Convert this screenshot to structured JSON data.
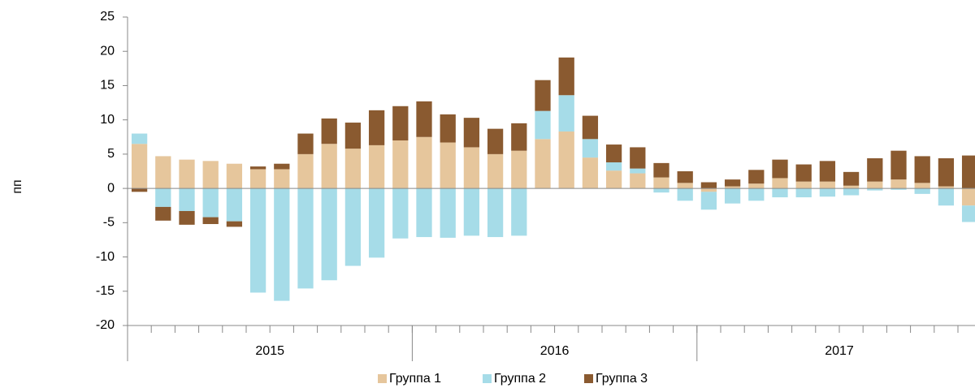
{
  "chart_data": {
    "type": "stacked-bar",
    "y_label": "пп",
    "categories": [
      null,
      null,
      null,
      null,
      null,
      null,
      null,
      null,
      null,
      null,
      null,
      null,
      null,
      null,
      null,
      null,
      null,
      null,
      null,
      null,
      null,
      null,
      null,
      null,
      null,
      null,
      null,
      null,
      null,
      null,
      null,
      null,
      null,
      null,
      null,
      null
    ],
    "groups": [
      "2015",
      "2016",
      "2017"
    ],
    "series": [
      {
        "name": "Группа 1",
        "color": "#e6c69c",
        "values": [
          6.5,
          4.7,
          4.2,
          4.0,
          3.6,
          2.8,
          2.8,
          5.0,
          6.5,
          5.8,
          6.3,
          7.0,
          7.5,
          6.7,
          6.0,
          5.0,
          5.5,
          7.2,
          8.3,
          4.5,
          2.6,
          2.2,
          1.6,
          0.8,
          -0.5,
          0.3,
          0.7,
          1.5,
          1.0,
          1.0,
          0.4,
          1.0,
          1.3,
          0.8,
          0.3,
          -2.5
        ]
      },
      {
        "name": "Группа 2",
        "color": "#a6dce8",
        "values": [
          1.5,
          -2.7,
          -3.3,
          -4.2,
          -4.8,
          -15.2,
          -16.4,
          -14.6,
          -13.4,
          -11.3,
          -10.1,
          -7.3,
          -7.1,
          -7.2,
          -6.9,
          -7.1,
          -6.9,
          4.1,
          5.3,
          2.7,
          1.2,
          0.7,
          -0.6,
          -1.8,
          -2.6,
          -2.2,
          -1.8,
          -1.3,
          -1.3,
          -1.2,
          -1.0,
          -0.3,
          -0.2,
          -0.8,
          -2.5,
          -2.4
        ]
      },
      {
        "name": "Группа 3",
        "color": "#8a5a30",
        "values": [
          -0.5,
          -2.0,
          -2.0,
          -1.0,
          -0.8,
          0.4,
          0.8,
          3.0,
          3.7,
          3.8,
          5.1,
          5.0,
          5.2,
          4.1,
          4.3,
          3.7,
          4.0,
          4.5,
          5.5,
          3.4,
          2.6,
          3.1,
          2.1,
          1.7,
          0.9,
          1.0,
          2.0,
          2.7,
          2.5,
          3.0,
          2.0,
          3.4,
          4.2,
          3.9,
          4.1,
          4.8
        ]
      }
    ],
    "ylim": [
      -20,
      25
    ],
    "yticks": [
      -20,
      -15,
      -10,
      -5,
      0,
      5,
      10,
      15,
      20,
      25
    ],
    "legend": "bottom"
  }
}
